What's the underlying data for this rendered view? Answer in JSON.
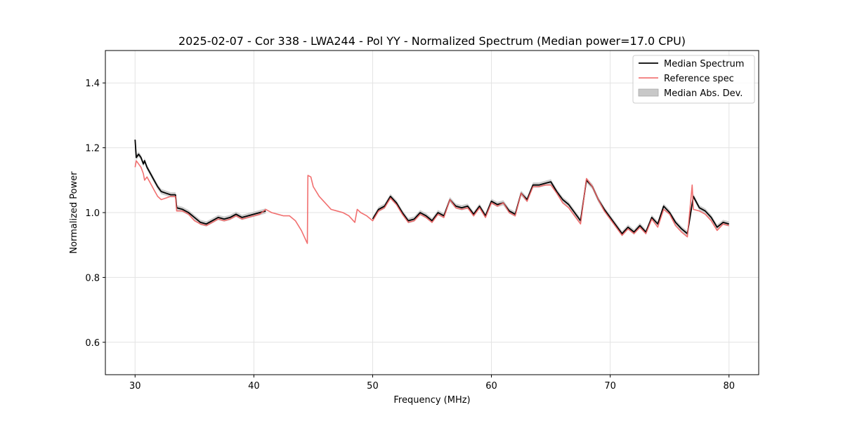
{
  "chart_data": {
    "type": "line",
    "title": "2025-02-07 - Cor 338 - LWA244 - Pol YY - Normalized Spectrum (Median power=17.0 CPU)",
    "xlabel": "Frequency (MHz)",
    "ylabel": "Normalized Power",
    "xlim": [
      27.5,
      82.5
    ],
    "ylim": [
      0.5,
      1.5
    ],
    "xticks": [
      30,
      40,
      50,
      60,
      70,
      80
    ],
    "yticks": [
      0.6,
      0.8,
      1.0,
      1.2,
      1.4
    ],
    "xtick_labels": [
      "30",
      "40",
      "50",
      "60",
      "70",
      "80"
    ],
    "ytick_labels": [
      "0.6",
      "0.8",
      "1.0",
      "1.2",
      "1.4"
    ],
    "grid": true,
    "legend_position": "top-right",
    "legend": {
      "median": "Median Spectrum",
      "reference": "Reference spec",
      "mad": "Median Abs. Dev."
    },
    "colors": {
      "median": "#000000",
      "reference": "#f06060",
      "mad": "#bdbdbd",
      "grid": "#e3e3e3"
    },
    "series": [
      {
        "name": "Median Spectrum",
        "x": [
          30.0,
          30.1,
          30.3,
          30.5,
          30.7,
          30.8,
          31.0,
          31.3,
          31.6,
          31.9,
          32.2,
          32.6,
          33.0,
          33.4,
          33.5,
          34.0,
          34.5,
          35.0,
          35.5,
          36.0,
          36.5,
          37.0,
          37.5,
          38.0,
          38.5,
          39.0,
          39.5,
          40.0,
          40.5,
          41.0,
          null,
          50.0,
          50.5,
          51.0,
          51.5,
          52.0,
          52.5,
          53.0,
          53.5,
          54.0,
          54.5,
          55.0,
          55.5,
          56.0,
          56.5,
          57.0,
          57.5,
          58.0,
          58.5,
          59.0,
          59.5,
          60.0,
          60.5,
          61.0,
          61.5,
          62.0,
          62.5,
          63.0,
          63.5,
          64.0,
          64.5,
          65.0,
          65.5,
          66.0,
          66.5,
          67.0,
          67.5,
          68.0,
          68.5,
          69.0,
          69.5,
          70.0,
          70.5,
          71.0,
          71.5,
          72.0,
          72.5,
          73.0,
          73.5,
          74.0,
          74.5,
          75.0,
          75.5,
          76.0,
          76.5,
          77.0,
          77.5,
          78.0,
          78.5,
          79.0,
          79.5,
          80.0
        ],
        "values": [
          1.225,
          1.17,
          1.18,
          1.17,
          1.15,
          1.16,
          1.14,
          1.12,
          1.1,
          1.08,
          1.065,
          1.06,
          1.055,
          1.055,
          1.015,
          1.01,
          1.0,
          0.985,
          0.97,
          0.965,
          0.975,
          0.985,
          0.98,
          0.985,
          0.995,
          0.985,
          0.99,
          0.995,
          1.0,
          1.005,
          null,
          0.98,
          1.01,
          1.02,
          1.05,
          1.03,
          1.0,
          0.975,
          0.98,
          1.0,
          0.99,
          0.975,
          1.0,
          0.99,
          1.04,
          1.02,
          1.015,
          1.02,
          0.995,
          1.02,
          0.99,
          1.035,
          1.025,
          1.03,
          1.005,
          0.995,
          1.06,
          1.04,
          1.085,
          1.085,
          1.09,
          1.095,
          1.065,
          1.04,
          1.025,
          1.0,
          0.975,
          1.1,
          1.08,
          1.04,
          1.01,
          0.985,
          0.96,
          0.935,
          0.955,
          0.94,
          0.96,
          0.94,
          0.985,
          0.965,
          1.02,
          1.0,
          0.97,
          0.95,
          0.935,
          1.05,
          1.015,
          1.005,
          0.985,
          0.955,
          0.97,
          0.965
        ]
      },
      {
        "name": "Reference spec",
        "x": [
          30.0,
          30.1,
          30.3,
          30.5,
          30.7,
          30.8,
          31.0,
          31.3,
          31.6,
          31.9,
          32.2,
          32.6,
          33.0,
          33.4,
          33.5,
          34.0,
          34.5,
          35.0,
          35.5,
          36.0,
          36.5,
          37.0,
          37.5,
          38.0,
          38.5,
          39.0,
          39.5,
          40.0,
          40.5,
          41.0,
          41.5,
          42.0,
          42.5,
          43.0,
          43.5,
          44.0,
          44.5,
          44.55,
          44.8,
          45.0,
          45.5,
          46.0,
          46.5,
          47.0,
          47.5,
          48.0,
          48.5,
          48.7,
          49.0,
          49.5,
          50.0,
          50.5,
          51.0,
          51.5,
          52.0,
          52.5,
          53.0,
          53.5,
          54.0,
          54.5,
          55.0,
          55.5,
          56.0,
          56.5,
          57.0,
          57.5,
          58.0,
          58.5,
          59.0,
          59.5,
          60.0,
          60.5,
          61.0,
          61.5,
          62.0,
          62.5,
          63.0,
          63.5,
          64.0,
          64.5,
          65.0,
          65.5,
          66.0,
          66.5,
          67.0,
          67.5,
          68.0,
          68.5,
          69.0,
          69.5,
          70.0,
          70.5,
          71.0,
          71.5,
          72.0,
          72.5,
          73.0,
          73.5,
          74.0,
          74.5,
          75.0,
          75.5,
          76.0,
          76.5,
          76.9,
          77.0,
          77.5,
          78.0,
          78.5,
          79.0,
          79.5,
          80.0
        ],
        "values": [
          1.14,
          1.16,
          1.15,
          1.14,
          1.12,
          1.1,
          1.11,
          1.09,
          1.07,
          1.05,
          1.04,
          1.045,
          1.05,
          1.05,
          1.005,
          1.005,
          0.995,
          0.975,
          0.965,
          0.96,
          0.97,
          0.98,
          0.975,
          0.98,
          0.99,
          0.98,
          0.985,
          0.99,
          0.995,
          1.01,
          1.0,
          0.995,
          0.99,
          0.99,
          0.975,
          0.945,
          0.905,
          1.115,
          1.11,
          1.08,
          1.05,
          1.03,
          1.01,
          1.005,
          1.0,
          0.99,
          0.97,
          1.01,
          1.0,
          0.99,
          0.975,
          1.005,
          1.015,
          1.045,
          1.025,
          0.995,
          0.97,
          0.975,
          0.995,
          0.985,
          0.97,
          0.995,
          0.985,
          1.04,
          1.015,
          1.01,
          1.015,
          0.99,
          1.015,
          0.985,
          1.03,
          1.02,
          1.03,
          1.0,
          0.99,
          1.06,
          1.035,
          1.08,
          1.08,
          1.085,
          1.085,
          1.06,
          1.03,
          1.015,
          0.99,
          0.965,
          1.105,
          1.08,
          1.04,
          1.005,
          0.98,
          0.955,
          0.93,
          0.95,
          0.935,
          0.955,
          0.935,
          0.98,
          0.955,
          1.01,
          0.995,
          0.96,
          0.94,
          0.925,
          1.085,
          1.01,
          1.005,
          0.995,
          0.975,
          0.945,
          0.965,
          0.96
        ]
      }
    ],
    "mad_halfwidth": 0.008
  }
}
